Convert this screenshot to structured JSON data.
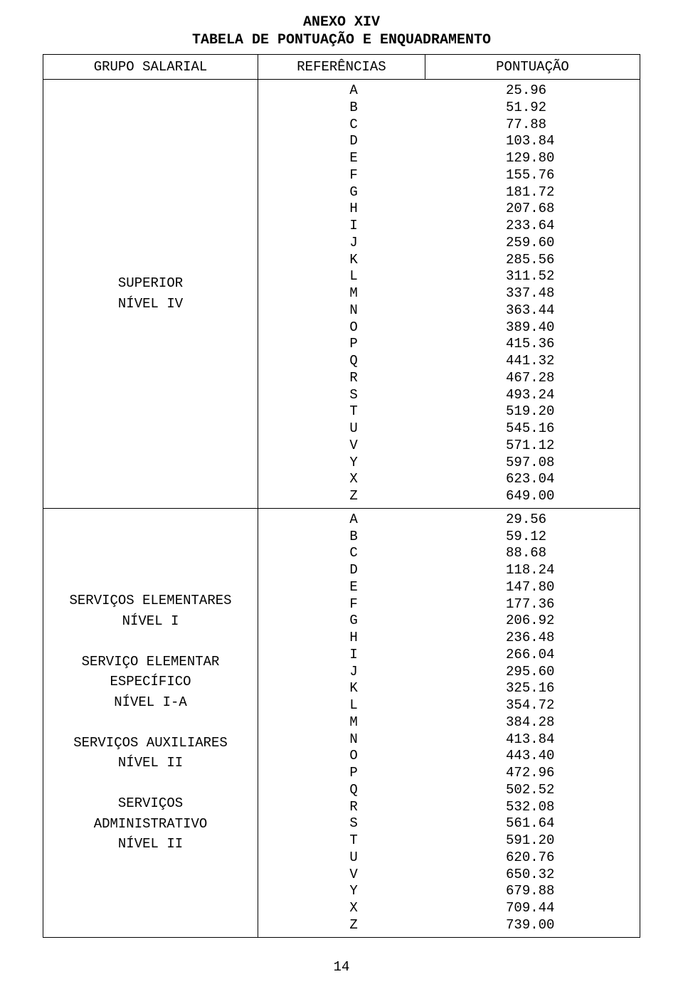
{
  "doc": {
    "title1": "ANEXO XIV",
    "title2": "TABELA DE PONTUAÇÃO E ENQUADRAMENTO",
    "page_number": "14",
    "headers": {
      "col1": "GRUPO SALARIAL",
      "col2": "REFERÊNCIAS",
      "col3": "PONTUAÇÃO"
    },
    "blocks": [
      {
        "group_label": "SUPERIOR\nNÍVEL IV",
        "rows": [
          {
            "ref": "A",
            "pont": "25.96"
          },
          {
            "ref": "B",
            "pont": "51.92"
          },
          {
            "ref": "C",
            "pont": "77.88"
          },
          {
            "ref": "D",
            "pont": "103.84"
          },
          {
            "ref": "E",
            "pont": "129.80"
          },
          {
            "ref": "F",
            "pont": "155.76"
          },
          {
            "ref": "G",
            "pont": "181.72"
          },
          {
            "ref": "H",
            "pont": "207.68"
          },
          {
            "ref": "I",
            "pont": "233.64"
          },
          {
            "ref": "J",
            "pont": "259.60"
          },
          {
            "ref": "K",
            "pont": "285.56"
          },
          {
            "ref": "L",
            "pont": "311.52"
          },
          {
            "ref": "M",
            "pont": "337.48"
          },
          {
            "ref": "N",
            "pont": "363.44"
          },
          {
            "ref": "O",
            "pont": "389.40"
          },
          {
            "ref": "P",
            "pont": "415.36"
          },
          {
            "ref": "Q",
            "pont": "441.32"
          },
          {
            "ref": "R",
            "pont": "467.28"
          },
          {
            "ref": "S",
            "pont": "493.24"
          },
          {
            "ref": "T",
            "pont": "519.20"
          },
          {
            "ref": "U",
            "pont": "545.16"
          },
          {
            "ref": "V",
            "pont": "571.12"
          },
          {
            "ref": "Y",
            "pont": "597.08"
          },
          {
            "ref": "X",
            "pont": "623.04"
          },
          {
            "ref": "Z",
            "pont": "649.00"
          }
        ]
      },
      {
        "group_label": "SERVIÇOS ELEMENTARES\nNÍVEL I\n\nSERVIÇO ELEMENTAR\nESPECÍFICO\nNÍVEL I-A\n\nSERVIÇOS AUXILIARES\nNÍVEL II\n\nSERVIÇOS\nADMINISTRATIVO\nNÍVEL II",
        "rows": [
          {
            "ref": "A",
            "pont": "29.56"
          },
          {
            "ref": "B",
            "pont": "59.12"
          },
          {
            "ref": "C",
            "pont": "88.68"
          },
          {
            "ref": "D",
            "pont": "118.24"
          },
          {
            "ref": "E",
            "pont": "147.80"
          },
          {
            "ref": "F",
            "pont": "177.36"
          },
          {
            "ref": "G",
            "pont": "206.92"
          },
          {
            "ref": "H",
            "pont": "236.48"
          },
          {
            "ref": "I",
            "pont": "266.04"
          },
          {
            "ref": "J",
            "pont": "295.60"
          },
          {
            "ref": "K",
            "pont": "325.16"
          },
          {
            "ref": "L",
            "pont": "354.72"
          },
          {
            "ref": "M",
            "pont": "384.28"
          },
          {
            "ref": "N",
            "pont": "413.84"
          },
          {
            "ref": "O",
            "pont": "443.40"
          },
          {
            "ref": "P",
            "pont": "472.96"
          },
          {
            "ref": "Q",
            "pont": "502.52"
          },
          {
            "ref": "R",
            "pont": "532.08"
          },
          {
            "ref": "S",
            "pont": "561.64"
          },
          {
            "ref": "T",
            "pont": "591.20"
          },
          {
            "ref": "U",
            "pont": "620.76"
          },
          {
            "ref": "V",
            "pont": "650.32"
          },
          {
            "ref": "Y",
            "pont": "679.88"
          },
          {
            "ref": "X",
            "pont": "709.44"
          },
          {
            "ref": "Z",
            "pont": "739.00"
          }
        ]
      }
    ]
  },
  "style": {
    "font_family": "Courier New",
    "background_color": "#ffffff",
    "text_color": "#000000",
    "border_color": "#000000",
    "title_fontsize": 20,
    "cell_fontsize": 19
  }
}
